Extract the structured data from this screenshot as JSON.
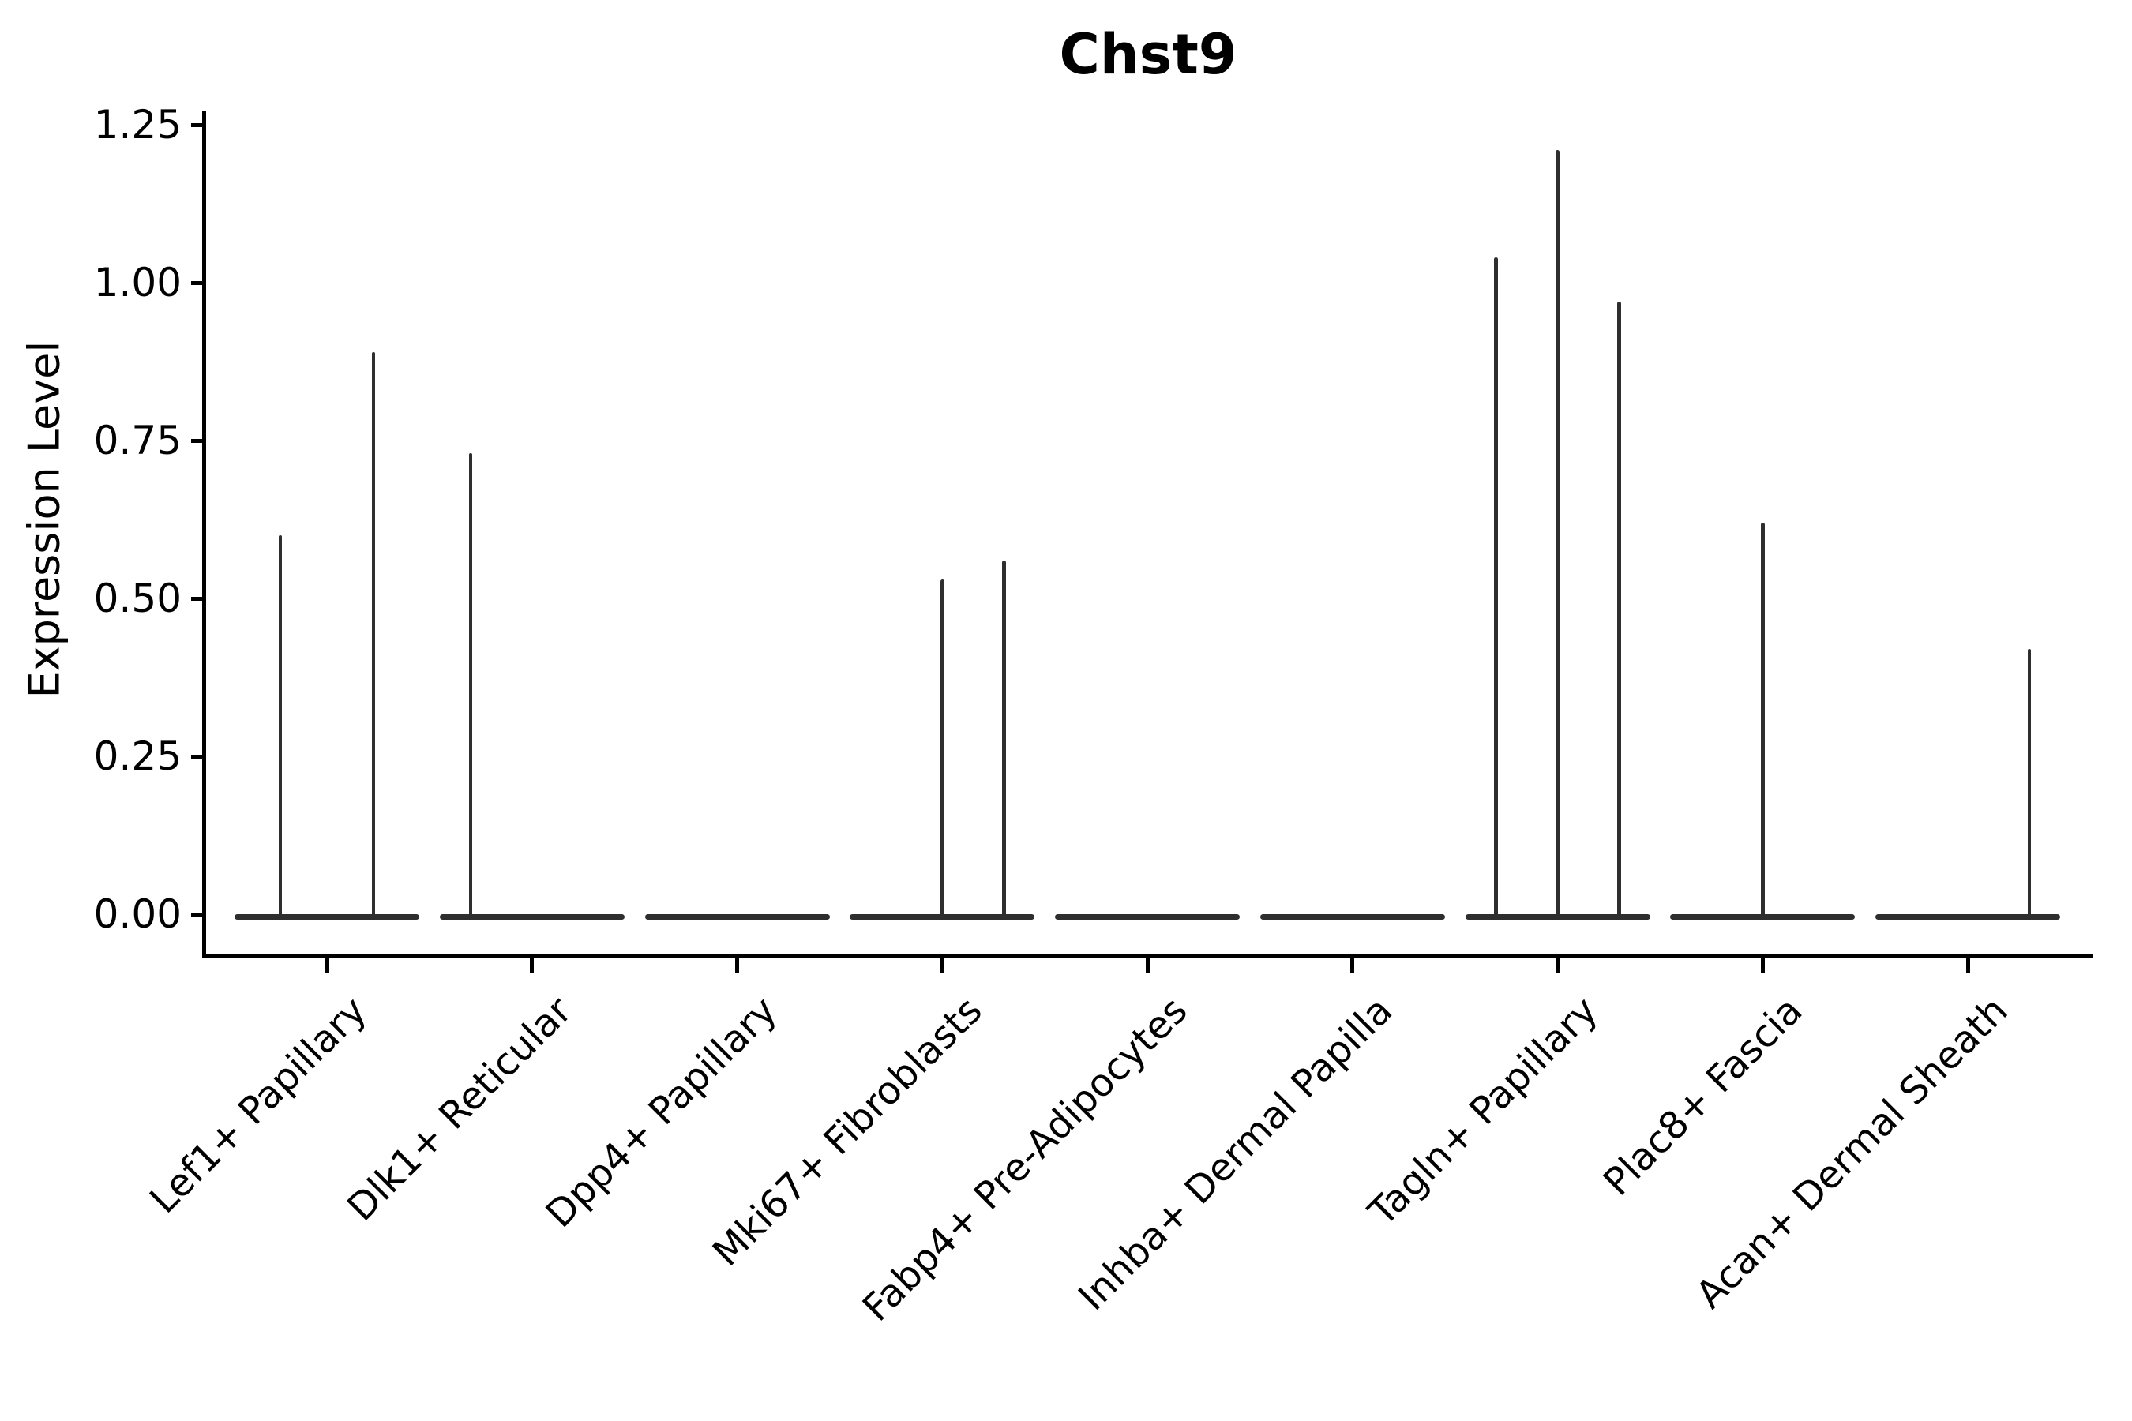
{
  "title": "Chst9",
  "y_axis": {
    "label": "Expression Level",
    "tick_labels": [
      "0.00",
      "0.25",
      "0.50",
      "0.75",
      "1.00",
      "1.25"
    ]
  },
  "colors": {
    "background": "#ffffff",
    "axis": "#000000",
    "violin_line": "#2e2e2e",
    "text": "#000000"
  },
  "chart_data": {
    "type": "violin",
    "title": "Chst9",
    "xlabel": "",
    "ylabel": "Expression Level",
    "ylim": [
      0,
      1.25
    ],
    "y_ticks": [
      0,
      0.25,
      0.5,
      0.75,
      1.0,
      1.25
    ],
    "grid": false,
    "legend": false,
    "categories": [
      "Lef1+ Papillary",
      "Dlk1+ Reticular",
      "Dpp4+ Papillary",
      "Mki67+ Fibroblasts",
      "Fabp4+ Pre-Adipocytes",
      "Inhba+ Dermal Papilla",
      "Tagln+ Papillary",
      "Plac8+ Fascia",
      "Acan+ Dermal Sheath"
    ],
    "series": [
      {
        "category": "Lef1+ Papillary",
        "baseline_value": 0,
        "spikes": [
          {
            "value": 0.6,
            "dx": -59
          },
          {
            "value": 0.89,
            "dx": 59
          }
        ]
      },
      {
        "category": "Dlk1+ Reticular",
        "baseline_value": 0,
        "spikes": [
          {
            "value": 0.73,
            "dx": -78
          }
        ]
      },
      {
        "category": "Dpp4+ Papillary",
        "baseline_value": 0,
        "spikes": []
      },
      {
        "category": "Mki67+ Fibroblasts",
        "baseline_value": 0,
        "spikes": [
          {
            "value": 0.53,
            "dx": 0
          },
          {
            "value": 0.56,
            "dx": 78
          }
        ]
      },
      {
        "category": "Fabp4+ Pre-Adipocytes",
        "baseline_value": 0,
        "spikes": []
      },
      {
        "category": "Inhba+ Dermal Papilla",
        "baseline_value": 0,
        "spikes": []
      },
      {
        "category": "Tagln+ Papillary",
        "baseline_value": 0,
        "spikes": [
          {
            "value": 1.04,
            "dx": -78
          },
          {
            "value": 1.21,
            "dx": 0
          },
          {
            "value": 0.97,
            "dx": 78
          }
        ]
      },
      {
        "category": "Plac8+ Fascia",
        "baseline_value": 0,
        "spikes": [
          {
            "value": 0.62,
            "dx": 0
          }
        ]
      },
      {
        "category": "Acan+ Dermal Sheath",
        "baseline_value": 0,
        "spikes": [
          {
            "value": 0.42,
            "dx": 78
          }
        ]
      }
    ],
    "notes": "Seurat-style violin plot; expression mostly zero so violins collapse to flat baselines at 0 with thin vertical density spikes at expressed values"
  }
}
